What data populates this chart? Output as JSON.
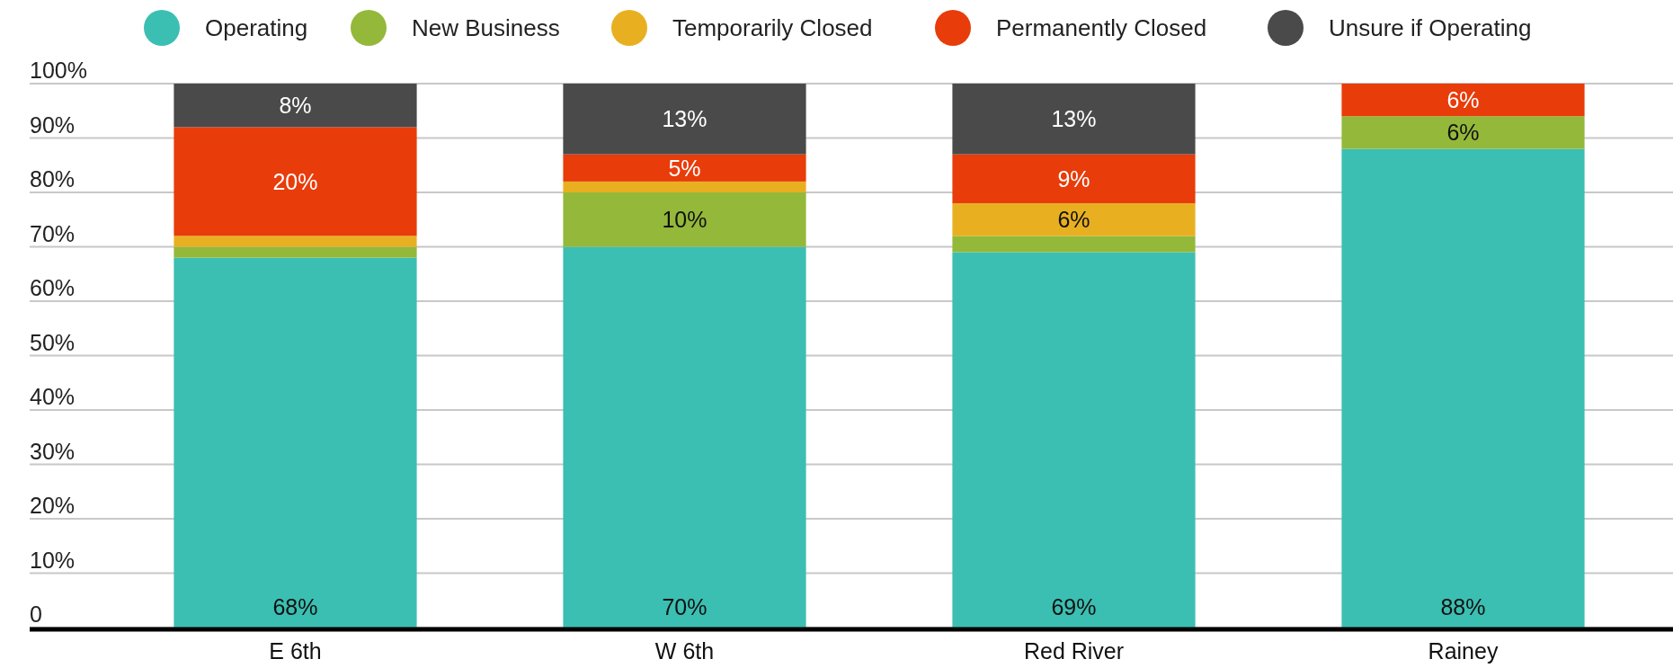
{
  "chart_data": {
    "type": "bar",
    "stacked": true,
    "categories": [
      "E 6th",
      "W 6th",
      "Red River",
      "Rainey"
    ],
    "series": [
      {
        "name": "Operating",
        "color": "#3bbfb2",
        "values": [
          68,
          70,
          69,
          88
        ],
        "value_labels": [
          "68%",
          "70%",
          "69%",
          "88%"
        ]
      },
      {
        "name": "New Business",
        "color": "#94b83a",
        "values": [
          2,
          10,
          3,
          6
        ],
        "value_labels": [
          null,
          "10%",
          null,
          "6%"
        ]
      },
      {
        "name": "Temporarily Closed",
        "color": "#e8b020",
        "values": [
          2,
          2,
          6,
          0
        ],
        "value_labels": [
          null,
          null,
          "6%",
          null
        ]
      },
      {
        "name": "Permanently Closed",
        "color": "#e83c0a",
        "values": [
          20,
          5,
          9,
          6
        ],
        "value_labels": [
          "20%",
          "5%",
          "9%",
          "6%"
        ]
      },
      {
        "name": "Unsure if Operating",
        "color": "#4a4a4a",
        "values": [
          8,
          13,
          13,
          0
        ],
        "value_labels": [
          "8%",
          "13%",
          "13%",
          null
        ]
      }
    ],
    "ylim": [
      0,
      100
    ],
    "yticks": [
      {
        "value": 0,
        "label": "0"
      },
      {
        "value": 10,
        "label": "10%"
      },
      {
        "value": 20,
        "label": "20%"
      },
      {
        "value": 30,
        "label": "30%"
      },
      {
        "value": 40,
        "label": "40%"
      },
      {
        "value": 50,
        "label": "50%"
      },
      {
        "value": 60,
        "label": "60%"
      },
      {
        "value": 70,
        "label": "70%"
      },
      {
        "value": 80,
        "label": "80%"
      },
      {
        "value": 90,
        "label": "90%"
      },
      {
        "value": 100,
        "label": "100%"
      }
    ],
    "grid": "y",
    "legend": "top"
  }
}
